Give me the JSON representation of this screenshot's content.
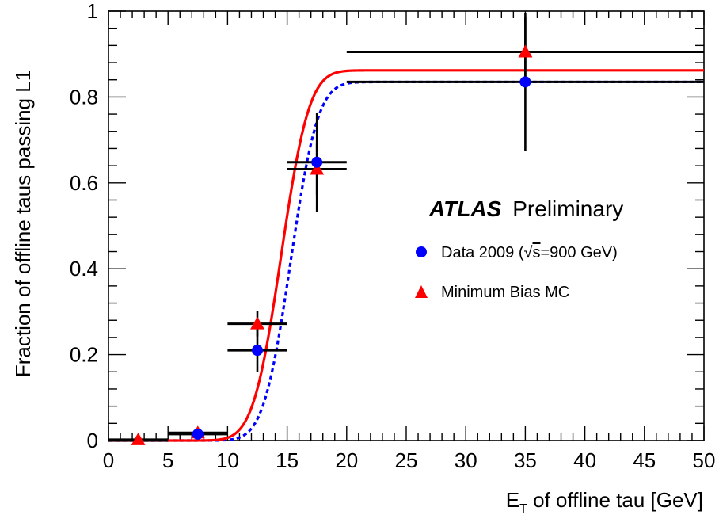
{
  "chart_data": {
    "type": "scatter",
    "xlabel": {
      "main": "E",
      "sub": "T",
      "rest": " of offline tau [GeV]"
    },
    "ylabel": "Fraction of offline taus passing L1",
    "xlim": [
      0,
      50
    ],
    "ylim": [
      0,
      1
    ],
    "x_ticks": [
      0,
      5,
      10,
      15,
      20,
      25,
      30,
      35,
      40,
      45,
      50
    ],
    "y_ticks": [
      0,
      0.2,
      0.4,
      0.6,
      0.8,
      1
    ],
    "x_tick_labels": [
      "0",
      "5",
      "10",
      "15",
      "20",
      "25",
      "30",
      "35",
      "40",
      "45",
      "50"
    ],
    "y_tick_labels": [
      "0",
      "0.2",
      "0.4",
      "0.6",
      "0.8",
      "1"
    ],
    "grid": false,
    "legend_position": "right",
    "annotation": {
      "bold": "ATLAS",
      "normal": "Preliminary"
    },
    "series": [
      {
        "name": "Data 2009 (√s=900 GeV)",
        "legend_prefix": "Data 2009 (",
        "legend_sqrt": "√",
        "legend_s": "s",
        "legend_suffix": "=900 GeV)",
        "marker": "circle",
        "color": "#0000ff",
        "points": [
          {
            "x": 2.5,
            "y": 0.0,
            "xerr": 2.5,
            "yerr": 0.0
          },
          {
            "x": 7.5,
            "y": 0.015,
            "xerr": 2.5,
            "yerr": 0.007
          },
          {
            "x": 12.5,
            "y": 0.21,
            "xerr": 2.5,
            "yerr": 0.05
          },
          {
            "x": 17.5,
            "y": 0.648,
            "xerr": 2.5,
            "yerr": 0.115
          },
          {
            "x": 35.0,
            "y": 0.835,
            "xerr": 15.0,
            "yerr": 0.16
          }
        ],
        "fit": {
          "style": "dashed",
          "plateau": 0.835,
          "mean": 15.3,
          "width": 1.8
        }
      },
      {
        "name": "Minimum Bias MC",
        "legend_prefix": "Minimum Bias MC",
        "marker": "triangle",
        "color": "#ff0000",
        "points": [
          {
            "x": 2.5,
            "y": 0.002,
            "xerr": 2.5,
            "yerr": 0.0
          },
          {
            "x": 7.5,
            "y": 0.018,
            "xerr": 2.5,
            "yerr": 0.005
          },
          {
            "x": 12.5,
            "y": 0.272,
            "xerr": 2.5,
            "yerr": 0.03
          },
          {
            "x": 17.5,
            "y": 0.632,
            "xerr": 2.5,
            "yerr": 0.06
          },
          {
            "x": 35.0,
            "y": 0.905,
            "xerr": 15.0,
            "yerr": 0.08
          }
        ],
        "fit": {
          "style": "solid",
          "plateau": 0.862,
          "mean": 14.5,
          "width": 1.85
        }
      }
    ]
  }
}
